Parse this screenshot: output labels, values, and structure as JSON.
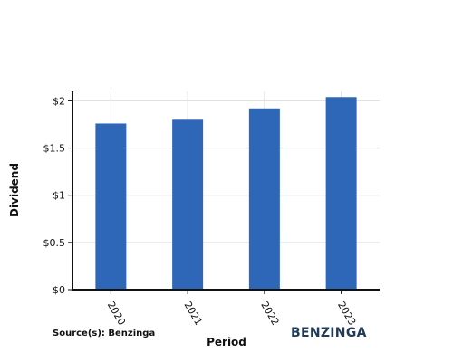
{
  "chart_data": {
    "type": "bar",
    "categories": [
      "2020",
      "2021",
      "2022",
      "2023"
    ],
    "values": [
      1.76,
      1.8,
      1.92,
      2.04
    ],
    "xlabel": "Period",
    "ylabel": "Dividend",
    "ylim": [
      0,
      2.1
    ],
    "yticks": [
      0,
      0.5,
      1,
      1.5,
      2
    ],
    "ytick_labels": [
      "$0",
      "$0.5",
      "$1",
      "$1.5",
      "$2"
    ],
    "grid": true,
    "bar_color": "#2e67b8"
  },
  "footer": {
    "source": "Source(s): Benzinga",
    "brand": "BENZINGA"
  }
}
